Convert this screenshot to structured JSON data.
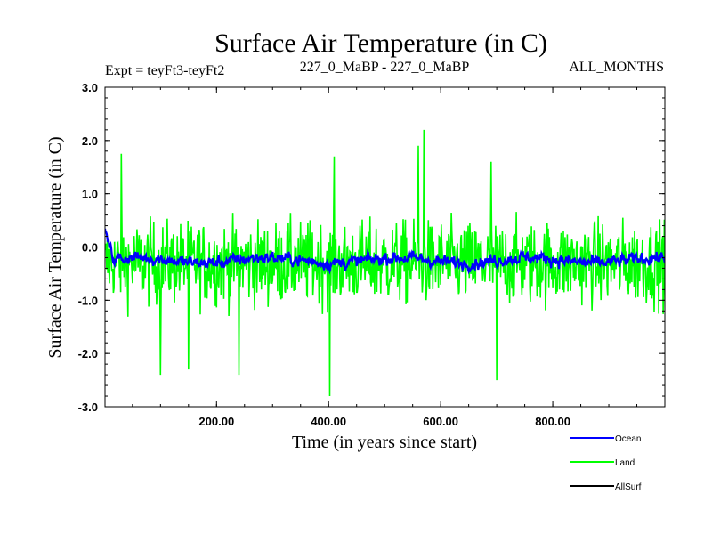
{
  "chart_data": {
    "type": "line",
    "title": "Surface Air Temperature (in C)",
    "subtitle_left": "Expt = teyFt3-teyFt2",
    "subtitle_center": "227_0_MaBP - 227_0_MaBP",
    "subtitle_right": "ALL_MONTHS",
    "xlabel": "Time (in years since start)",
    "ylabel": "Surface Air Temperature (in C)",
    "xlim": [
      1,
      1000
    ],
    "ylim": [
      -3.0,
      3.0
    ],
    "x_ticks": [
      200,
      400,
      600,
      800
    ],
    "x_tick_labels": [
      "200.00",
      "400.00",
      "600.00",
      "800.00"
    ],
    "y_ticks": [
      3.0,
      2.0,
      1.0,
      0.0,
      -1.0,
      -2.0,
      -3.0
    ],
    "y_tick_labels": [
      "3.0",
      "2.0",
      "1.0",
      "0.0",
      "-1.0",
      "-2.0",
      "-3.0"
    ],
    "reference_line": 0.0,
    "series": [
      {
        "name": "Land",
        "color": "#00ff00",
        "mean": -0.3,
        "spread": 0.55,
        "peaks": [
          {
            "x": 570,
            "y": 2.2
          },
          {
            "x": 560,
            "y": 1.9
          },
          {
            "x": 30,
            "y": 1.75
          },
          {
            "x": 410,
            "y": 1.7
          },
          {
            "x": 690,
            "y": 1.6
          },
          {
            "x": 402,
            "y": -2.8
          },
          {
            "x": 700,
            "y": -2.5
          },
          {
            "x": 240,
            "y": -2.4
          },
          {
            "x": 100,
            "y": -2.4
          },
          {
            "x": 150,
            "y": -2.3
          }
        ]
      },
      {
        "name": "Ocean",
        "color": "#0000ff",
        "mean": -0.25,
        "spread": 0.1,
        "start_value": 0.3
      },
      {
        "name": "AllSurf",
        "color": "#000000",
        "mean": -0.28,
        "spread": 0.3
      }
    ],
    "legend": [
      {
        "label": "Ocean",
        "color": "#0000ff"
      },
      {
        "label": "Land",
        "color": "#00ff00"
      },
      {
        "label": "AllSurf",
        "color": "#000000"
      }
    ]
  }
}
